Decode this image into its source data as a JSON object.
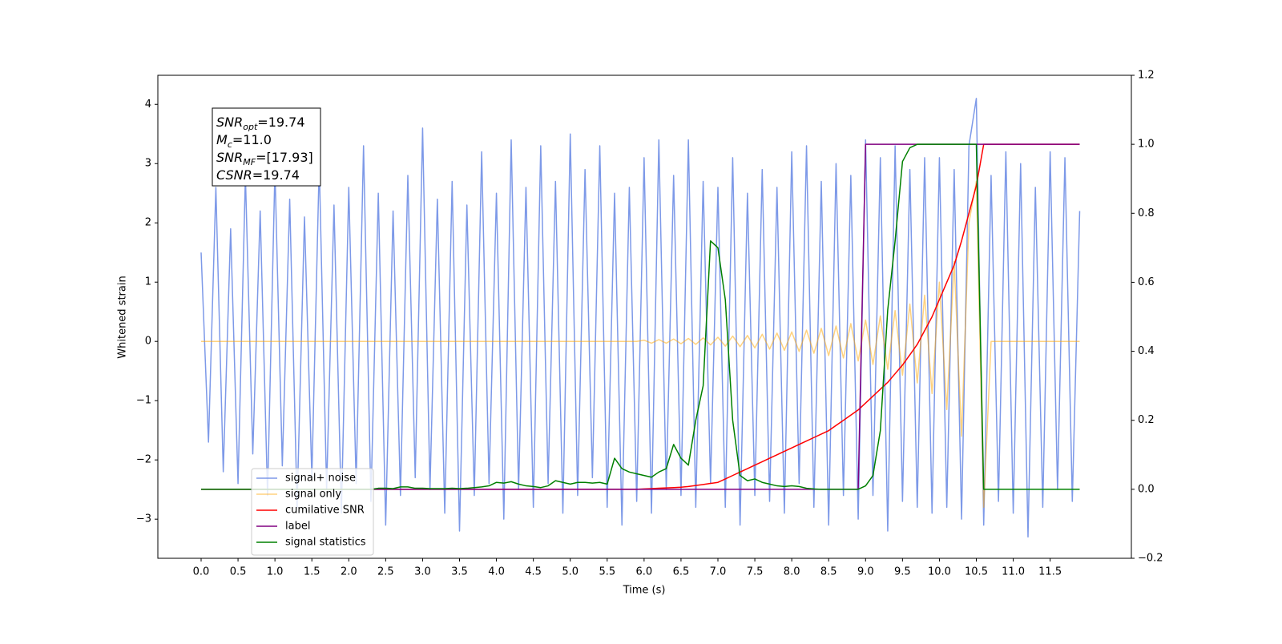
{
  "chart_data": {
    "type": "line",
    "xlabel": "Time (s)",
    "ylabel": "Whitened strain",
    "xlim": [
      -0.586,
      12.6
    ],
    "ylim": [
      -3.66,
      4.49
    ],
    "y2lim": [
      -0.2,
      1.2
    ],
    "xticks": [
      {
        "value": 0,
        "label": "0.0"
      },
      {
        "value": 0.5,
        "label": "0.5"
      },
      {
        "value": 1,
        "label": "1.0"
      },
      {
        "value": 1.5,
        "label": "1.5"
      },
      {
        "value": 2,
        "label": "2.0"
      },
      {
        "value": 2.5,
        "label": "2.5"
      },
      {
        "value": 3,
        "label": "3.0"
      },
      {
        "value": 3.5,
        "label": "3.5"
      },
      {
        "value": 4,
        "label": "4.0"
      },
      {
        "value": 4.5,
        "label": "4.5"
      },
      {
        "value": 5,
        "label": "5.0"
      },
      {
        "value": 5.5,
        "label": "5.5"
      },
      {
        "value": 6,
        "label": "6.0"
      },
      {
        "value": 6.5,
        "label": "6.5"
      },
      {
        "value": 7,
        "label": "7.0"
      },
      {
        "value": 7.5,
        "label": "7.5"
      },
      {
        "value": 8,
        "label": "8.0"
      },
      {
        "value": 8.5,
        "label": "8.5"
      },
      {
        "value": 9,
        "label": "9.0"
      },
      {
        "value": 9.5,
        "label": "9.5"
      },
      {
        "value": 10,
        "label": "10.0"
      },
      {
        "value": 10.5,
        "label": "10.5"
      },
      {
        "value": 11,
        "label": "11.0"
      },
      {
        "value": 11.5,
        "label": "11.5"
      }
    ],
    "yticks": [
      {
        "value": -3,
        "label": "−3"
      },
      {
        "value": -2,
        "label": "−2"
      },
      {
        "value": -1,
        "label": "−1"
      },
      0,
      1,
      2,
      3,
      4
    ],
    "y2ticks": [
      {
        "value": -0.2,
        "label": "−0.2"
      },
      {
        "value": 0,
        "label": "0.0"
      },
      {
        "value": 0.2,
        "label": "0.2"
      },
      {
        "value": 0.4,
        "label": "0.4"
      },
      {
        "value": 0.6,
        "label": "0.6"
      },
      {
        "value": 0.8,
        "label": "0.8"
      },
      {
        "value": 1,
        "label": "1.0"
      },
      {
        "value": 1.2,
        "label": "1.2"
      }
    ],
    "legend_loc": "lower left",
    "annotation": [
      {
        "main": "SNR",
        "sub": "opt",
        "rest": "=19.74"
      },
      {
        "main": "M",
        "sub": "c",
        "rest": "=11.0"
      },
      {
        "main": "SNR",
        "sub": "MF",
        "rest": "=[17.93]"
      },
      {
        "main": "CSNR",
        "rest": "=19.74"
      }
    ],
    "x": [
      0.0,
      0.1,
      0.2,
      0.3,
      0.4,
      0.5,
      0.6,
      0.7,
      0.8,
      0.9,
      1.0,
      1.1,
      1.2,
      1.3,
      1.4,
      1.5,
      1.6,
      1.7,
      1.8,
      1.9,
      2.0,
      2.1,
      2.2,
      2.3,
      2.4,
      2.5,
      2.6,
      2.7,
      2.8,
      2.9,
      3.0,
      3.1,
      3.2,
      3.3,
      3.4,
      3.5,
      3.6,
      3.7,
      3.8,
      3.9,
      4.0,
      4.1,
      4.2,
      4.3,
      4.4,
      4.5,
      4.6,
      4.7,
      4.8,
      4.9,
      5.0,
      5.1,
      5.2,
      5.3,
      5.4,
      5.5,
      5.6,
      5.7,
      5.8,
      5.9,
      6.0,
      6.1,
      6.2,
      6.3,
      6.4,
      6.5,
      6.6,
      6.7,
      6.8,
      6.9,
      7.0,
      7.1,
      7.2,
      7.3,
      7.4,
      7.5,
      7.6,
      7.7,
      7.8,
      7.9,
      8.0,
      8.1,
      8.2,
      8.3,
      8.4,
      8.5,
      8.6,
      8.7,
      8.8,
      8.9,
      9.0,
      9.1,
      9.2,
      9.3,
      9.4,
      9.5,
      9.6,
      9.7,
      9.8,
      9.9,
      10.0,
      10.1,
      10.2,
      10.3,
      10.4,
      10.5,
      10.6,
      10.7,
      10.8,
      10.9,
      11.0,
      11.1,
      11.2,
      11.3,
      11.4,
      11.5,
      11.6,
      11.7,
      11.8,
      11.9
    ],
    "series": [
      {
        "name": "signal+ noise",
        "color": "#6f8ee6",
        "alpha": 0.9,
        "values": [
          1.5,
          -1.7,
          2.6,
          -2.2,
          1.9,
          -2.4,
          2.8,
          -1.9,
          2.2,
          -2.6,
          2.9,
          -2.1,
          2.4,
          -2.8,
          2.1,
          -2.3,
          3.0,
          -2.5,
          2.3,
          -2.9,
          2.6,
          -2.4,
          3.3,
          -2.7,
          2.5,
          -3.1,
          2.2,
          -2.6,
          2.8,
          -2.3,
          3.6,
          -2.5,
          2.4,
          -2.9,
          2.7,
          -3.2,
          2.3,
          -2.6,
          3.2,
          -2.4,
          2.5,
          -3.0,
          3.4,
          -2.5,
          2.6,
          -2.8,
          3.3,
          -2.4,
          2.7,
          -2.9,
          3.5,
          -2.6,
          2.9,
          -2.3,
          3.3,
          -2.8,
          2.5,
          -3.1,
          2.6,
          -2.7,
          3.1,
          -2.9,
          3.4,
          -2.5,
          2.8,
          -2.6,
          3.4,
          -2.8,
          2.7,
          -2.4,
          2.6,
          -2.8,
          3.1,
          -3.1,
          2.5,
          -2.6,
          2.9,
          -2.7,
          2.6,
          -2.9,
          3.2,
          -2.4,
          3.3,
          -2.8,
          2.7,
          -3.1,
          3.0,
          -2.6,
          2.8,
          -3.0,
          3.4,
          -2.6,
          3.1,
          -3.2,
          3.3,
          -2.7,
          2.9,
          -2.8,
          3.1,
          -2.9,
          3.1,
          -2.8,
          2.9,
          -3.0,
          3.3,
          4.1,
          -3.1,
          2.8,
          -2.7,
          3.2,
          -2.9,
          3.0,
          -3.3,
          2.6,
          -2.8,
          3.2,
          -2.5,
          3.1,
          -2.7,
          2.2
        ]
      },
      {
        "name": "signal only",
        "color": "#ffa500",
        "alpha": 0.5,
        "values": [
          0,
          0,
          0,
          0,
          0,
          0,
          0,
          0,
          0,
          0,
          0,
          0,
          0,
          0,
          0,
          0,
          0,
          0,
          0,
          0,
          0,
          0,
          0,
          0,
          0,
          0,
          0,
          0,
          0,
          0,
          0,
          0,
          0,
          0,
          0,
          0,
          0,
          0,
          0,
          0,
          0,
          0,
          0,
          0,
          0,
          0,
          0,
          0,
          0,
          0,
          0,
          0,
          0,
          0,
          0,
          0,
          0,
          0,
          0,
          0,
          0.02,
          -0.03,
          0.03,
          -0.03,
          0.04,
          -0.04,
          0.05,
          -0.05,
          0.06,
          -0.06,
          0.07,
          -0.08,
          0.09,
          -0.09,
          0.1,
          -0.11,
          0.12,
          -0.13,
          0.14,
          -0.15,
          0.16,
          -0.17,
          0.19,
          -0.2,
          0.22,
          -0.24,
          0.26,
          -0.28,
          0.3,
          -0.33,
          0.36,
          -0.39,
          0.43,
          -0.47,
          0.52,
          -0.57,
          0.63,
          -0.7,
          0.78,
          -0.88,
          1.0,
          -1.15,
          1.35,
          -1.6,
          2.0,
          2.7,
          -2.8,
          0,
          0,
          0,
          0,
          0,
          0,
          0,
          0,
          0,
          0,
          0,
          0,
          0
        ]
      },
      {
        "name": "cumilative SNR",
        "color": "#ff0000",
        "axis": "y2",
        "values": [
          0,
          0,
          0,
          0,
          0,
          0,
          0,
          0,
          0,
          0,
          0,
          0,
          0,
          0,
          0,
          0,
          0,
          0,
          0,
          0,
          0,
          0,
          0,
          0,
          0,
          0,
          0,
          0,
          0,
          0,
          0,
          0,
          0,
          0,
          0,
          0,
          0,
          0,
          0,
          0,
          0,
          0,
          0,
          0,
          0,
          0,
          0,
          0,
          0,
          0,
          0,
          0,
          0,
          0,
          0,
          0,
          0,
          0,
          0,
          0,
          0.001,
          0.002,
          0.003,
          0.004,
          0.005,
          0.006,
          0.008,
          0.011,
          0.014,
          0.017,
          0.02,
          0.03,
          0.04,
          0.05,
          0.06,
          0.07,
          0.08,
          0.09,
          0.1,
          0.11,
          0.12,
          0.13,
          0.14,
          0.15,
          0.16,
          0.17,
          0.185,
          0.2,
          0.215,
          0.23,
          0.25,
          0.27,
          0.29,
          0.31,
          0.335,
          0.36,
          0.39,
          0.42,
          0.46,
          0.5,
          0.55,
          0.6,
          0.65,
          0.72,
          0.8,
          0.88,
          1.0,
          1.0,
          1.0,
          1.0,
          1.0,
          1.0,
          1.0,
          1.0,
          1.0,
          1.0,
          1.0,
          1.0,
          1.0,
          1.0
        ]
      },
      {
        "name": "label",
        "color": "#800080",
        "axis": "y2",
        "values": [
          0,
          0,
          0,
          0,
          0,
          0,
          0,
          0,
          0,
          0,
          0,
          0,
          0,
          0,
          0,
          0,
          0,
          0,
          0,
          0,
          0,
          0,
          0,
          0,
          0,
          0,
          0,
          0,
          0,
          0,
          0,
          0,
          0,
          0,
          0,
          0,
          0,
          0,
          0,
          0,
          0,
          0,
          0,
          0,
          0,
          0,
          0,
          0,
          0,
          0,
          0,
          0,
          0,
          0,
          0,
          0,
          0,
          0,
          0,
          0,
          0,
          0,
          0,
          0,
          0,
          0,
          0,
          0,
          0,
          0,
          0,
          0,
          0,
          0,
          0,
          0,
          0,
          0,
          0,
          0,
          0,
          0,
          0,
          0,
          0,
          0,
          0,
          0,
          0,
          0,
          1,
          1,
          1,
          1,
          1,
          1,
          1,
          1,
          1,
          1,
          1,
          1,
          1,
          1,
          1,
          1,
          1,
          1,
          1,
          1,
          1,
          1,
          1,
          1,
          1,
          1,
          1,
          1,
          1,
          1
        ]
      },
      {
        "name": "signal statistics",
        "color": "#008000",
        "axis": "y2",
        "values": [
          0,
          0,
          0,
          0,
          0,
          0,
          0,
          0,
          0,
          0,
          0,
          0,
          0,
          0,
          0,
          0,
          0,
          0,
          0,
          0,
          0,
          0,
          0,
          0,
          0.003,
          0.003,
          0.002,
          0.007,
          0.007,
          0.003,
          0.003,
          0.002,
          0.002,
          0.002,
          0.003,
          0.002,
          0.003,
          0.005,
          0.007,
          0.01,
          0.02,
          0.018,
          0.022,
          0.015,
          0.01,
          0.008,
          0.005,
          0.01,
          0.025,
          0.02,
          0.015,
          0.02,
          0.02,
          0.018,
          0.02,
          0.015,
          0.09,
          0.06,
          0.05,
          0.045,
          0.04,
          0.035,
          0.05,
          0.06,
          0.13,
          0.09,
          0.07,
          0.2,
          0.3,
          0.72,
          0.7,
          0.55,
          0.2,
          0.04,
          0.025,
          0.03,
          0.02,
          0.015,
          0.01,
          0.008,
          0.01,
          0.008,
          0.003,
          0.001,
          0,
          0,
          0,
          0,
          0,
          0,
          0.01,
          0.04,
          0.17,
          0.52,
          0.72,
          0.95,
          0.99,
          1,
          1,
          1,
          1,
          1,
          1,
          1,
          1,
          1,
          0,
          0,
          0,
          0,
          0,
          0,
          0,
          0,
          0,
          0,
          0,
          0,
          0,
          0
        ]
      }
    ]
  }
}
